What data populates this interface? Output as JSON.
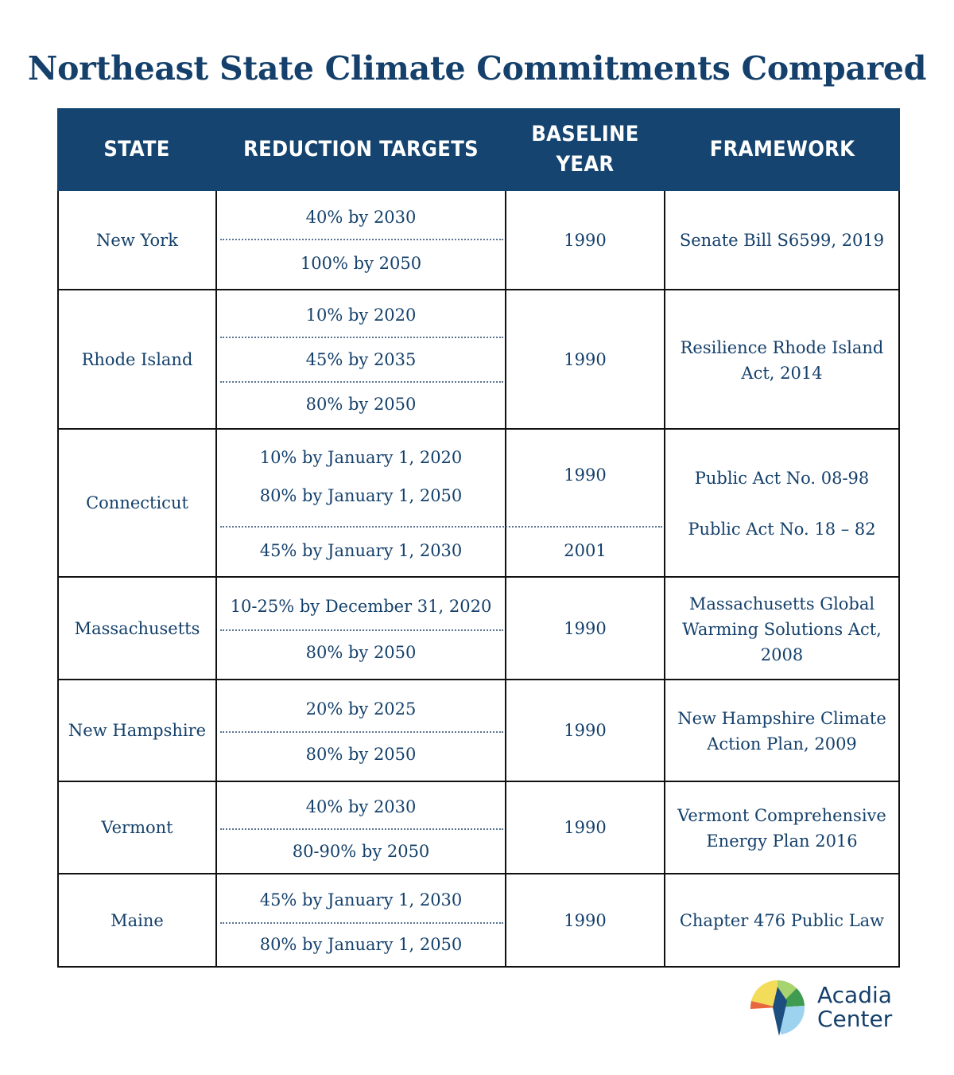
{
  "title": "Northeast State Climate Commitments Compared",
  "headers": {
    "state": "STATE",
    "targets": "REDUCTION TARGETS",
    "baseline_line1": "BASELINE",
    "baseline_line2": "YEAR",
    "framework": "FRAMEWORK"
  },
  "rows": [
    {
      "state": "New York",
      "targets": [
        "40% by 2030",
        "100% by 2050"
      ],
      "baseline": "1990",
      "framework": "Senate Bill S6599, 2019"
    },
    {
      "state": "Rhode Island",
      "targets": [
        "10% by 2020",
        "45% by 2035",
        "80% by 2050"
      ],
      "baseline": "1990",
      "framework_line1": "Resilience Rhode Island",
      "framework_line2": "Act, 2014"
    },
    {
      "state": "Connecticut",
      "targets": [
        "10% by January 1, 2020",
        "80% by January 1, 2050",
        "45% by January 1, 2030"
      ],
      "baselines": [
        "1990",
        "2001"
      ],
      "frameworks": [
        "Public Act No. 08-98",
        "Public Act No. 18 – 82"
      ]
    },
    {
      "state": "Massachusetts",
      "targets": [
        "10-25% by December 31, 2020",
        "80% by 2050"
      ],
      "baseline": "1990",
      "framework_lines": [
        "Massachusetts Global",
        "Warming Solutions Act,",
        "2008"
      ]
    },
    {
      "state": "New Hampshire",
      "targets": [
        "20% by 2025",
        "80% by 2050"
      ],
      "baseline": "1990",
      "framework_lines": [
        "New Hampshire Climate",
        "Action Plan, 2009"
      ]
    },
    {
      "state": "Vermont",
      "targets": [
        "40% by 2030",
        "80-90% by 2050"
      ],
      "baseline": "1990",
      "framework_lines": [
        "Vermont Comprehensive",
        "Energy Plan 2016"
      ]
    },
    {
      "state": "Maine",
      "targets": [
        "45% by January 1, 2030",
        "80% by January 1, 2050"
      ],
      "baseline": "1990",
      "framework": "Chapter 476 Public Law"
    }
  ],
  "logo": {
    "line1": "Acadia",
    "line2": "Center",
    "colors": [
      "#f2dc5a",
      "#a8d46f",
      "#3e9b4f",
      "#1c4e80",
      "#e8663c",
      "#9ed3f0"
    ]
  }
}
